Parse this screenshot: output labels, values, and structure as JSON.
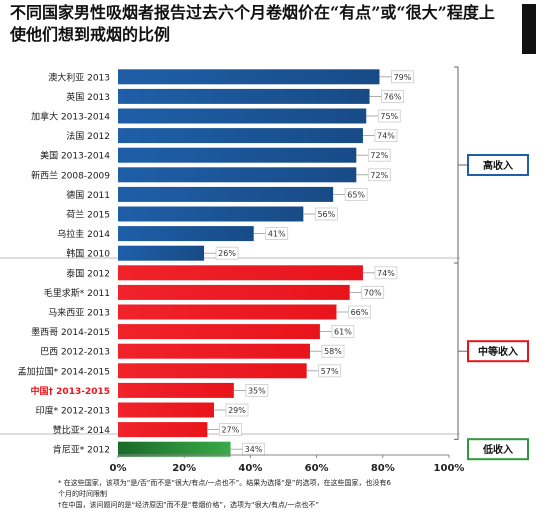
{
  "title": "不同国家男性吸烟者报告过去六个月卷烟价在“有点”或“很大”程度上使他们想到戒烟的比例",
  "footnotes": [
    "* 在这些国家，该项为“是/否“而不是“很大/有点/一点也不”。结果为选择“是”的选项，在这些国家，也没有6",
    "个月的时间限制",
    "†在中国，该问题问的是“经济原因”而不是“卷烟价格”，选项为“很大/有点/一点也不”"
  ],
  "colors": {
    "high": "#1F5FA8",
    "middle": "#E8141C",
    "low": "#2E9A3E",
    "china_label": "#E8141C",
    "bracket": "#666666"
  },
  "chart_data": {
    "type": "bar",
    "orientation": "horizontal",
    "title": "不同国家男性吸烟者报告过去六个月卷烟价在“有点”或“很大”程度上使他们想到戒烟的比例",
    "categories": [
      "澳大利亚 2013",
      "英国 2013",
      "加拿大 2013-2014",
      "法国 2012",
      "美国 2013-2014",
      "新西兰 2008-2009",
      "德国 2011",
      "荷兰 2015",
      "乌拉圭 2014",
      "韩国 2010",
      "泰国 2012",
      "毛里求斯* 2011",
      "马来西亚 2013",
      "墨西哥 2014-2015",
      "巴西 2012-2013",
      "孟加拉国* 2014-2015",
      "中国† 2013-2015",
      "印度* 2012-2013",
      "赞比亚* 2014",
      "肯尼亚* 2012"
    ],
    "values": [
      79,
      76,
      75,
      74,
      72,
      72,
      65,
      56,
      41,
      26,
      74,
      70,
      66,
      61,
      58,
      57,
      35,
      29,
      27,
      34
    ],
    "value_labels": [
      "79%",
      "76%",
      "75%",
      "74%",
      "72%",
      "72%",
      "65%",
      "56%",
      "41%",
      "26%",
      "74%",
      "70%",
      "66%",
      "61%",
      "58%",
      "57%",
      "35%",
      "29%",
      "27%",
      "34%"
    ],
    "groups": [
      {
        "name": "高收入",
        "start": 0,
        "end": 9,
        "color_key": "high"
      },
      {
        "name": "中等收入",
        "start": 10,
        "end": 18,
        "color_key": "middle"
      },
      {
        "name": "低收入",
        "start": 19,
        "end": 19,
        "color_key": "low"
      }
    ],
    "highlight_index": 16,
    "xlim": [
      0,
      100
    ],
    "xticks": [
      "0%",
      "20%",
      "40%",
      "60%",
      "80%",
      "100%"
    ],
    "xtick_values": [
      0,
      20,
      40,
      60,
      80,
      100
    ]
  }
}
